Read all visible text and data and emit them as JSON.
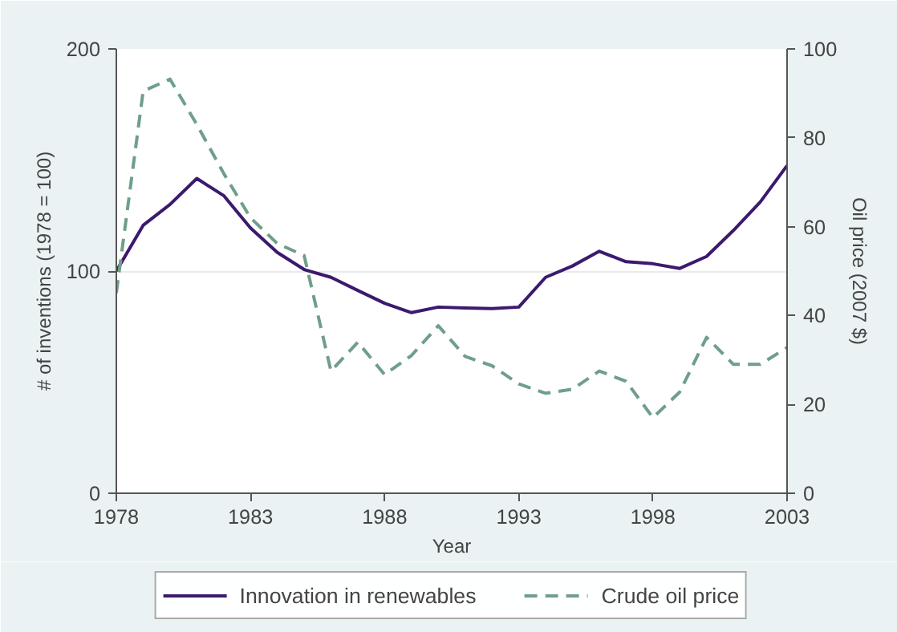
{
  "chart_data": {
    "type": "line",
    "xlabel": "Year",
    "ylabel": "# of inventions (1978 = 100)",
    "y2label": "Oil price (2007 $)",
    "x": [
      1978,
      1979,
      1980,
      1981,
      1982,
      1983,
      1984,
      1985,
      1986,
      1987,
      1988,
      1989,
      1990,
      1991,
      1992,
      1993,
      1994,
      1995,
      1996,
      1997,
      1998,
      1999,
      2000,
      2001,
      2002,
      2003
    ],
    "series": [
      {
        "name": "Innovation in renewables",
        "color": "#3b1a6e",
        "line_style": "solid",
        "values": [
          100,
          120.6,
          130,
          141.7,
          134,
          119.4,
          108.4,
          100.7,
          97.2,
          91.3,
          85.5,
          81.3,
          83.8,
          83.4,
          83.1,
          83.8,
          97.2,
          102.3,
          108.9,
          104.2,
          103.3,
          101.2,
          106.6,
          118.3,
          131.1,
          147.5
        ]
      },
      {
        "name": "Crude oil price",
        "color": "#6f9f8a",
        "line_style": "dashed",
        "axis": "y2",
        "values": [
          45.1,
          90.5,
          93.2,
          83,
          72,
          62,
          56.2,
          53.5,
          27.5,
          34,
          26.7,
          31,
          37.7,
          30.8,
          28.7,
          24.6,
          22.5,
          23.4,
          27.5,
          25.2,
          17,
          22.8,
          35.1,
          29,
          29,
          32.8
        ]
      }
    ],
    "xlim": [
      1978,
      2003
    ],
    "xticks": [
      1978,
      1983,
      1988,
      1993,
      1998,
      2003
    ],
    "ylim": [
      0,
      200
    ],
    "yticks": [
      0,
      100,
      200
    ],
    "y2lim": [
      0,
      100
    ],
    "y2ticks": [
      0,
      20,
      40,
      60,
      80,
      100
    ],
    "grid": "y",
    "legend": "bottom",
    "marker": "none"
  }
}
